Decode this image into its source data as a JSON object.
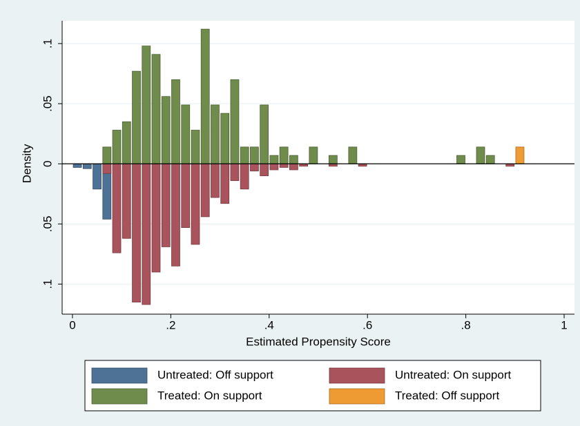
{
  "chart_data": {
    "type": "bar",
    "x_label": "Estimated Propensity Score",
    "y_label": "Density",
    "xlim": [
      -0.021,
      1.021
    ],
    "ylim": [
      -0.125,
      0.119
    ],
    "xticks": [
      0,
      {
        "value": 0.2,
        "label": ".2"
      },
      {
        "value": 0.4,
        "label": ".4"
      },
      {
        "value": 0.6,
        "label": ".6"
      },
      {
        "value": 0.8,
        "label": ".8"
      },
      1
    ],
    "yticks": [
      {
        "value": -0.1,
        "label": ".1"
      },
      {
        "value": -0.05,
        "label": ".05"
      },
      0,
      {
        "value": 0.05,
        "label": ".05"
      },
      {
        "value": 0.1,
        "label": ".1"
      }
    ],
    "grid": true,
    "series": [
      {
        "name": "Untreated: Off support",
        "color": "#4e7296",
        "x": [
          0.01,
          0.03,
          0.05,
          0.07
        ],
        "values": [
          -0.003,
          -0.004,
          -0.021,
          -0.046
        ]
      },
      {
        "name": "Untreated: On support",
        "color": "#a9535c",
        "x": [
          0.07,
          0.09,
          0.11,
          0.13,
          0.15,
          0.17,
          0.19,
          0.21,
          0.23,
          0.25,
          0.27,
          0.29,
          0.31,
          0.33,
          0.35,
          0.37,
          0.39,
          0.41,
          0.43,
          0.45,
          0.47,
          0.53,
          0.59,
          0.89
        ],
        "values": [
          -0.008,
          -0.074,
          -0.062,
          -0.115,
          -0.117,
          -0.09,
          -0.069,
          -0.085,
          -0.053,
          -0.067,
          -0.044,
          -0.028,
          -0.033,
          -0.014,
          -0.021,
          -0.006,
          -0.01,
          -0.005,
          -0.003,
          -0.005,
          -0.002,
          -0.002,
          -0.002,
          -0.002
        ]
      },
      {
        "name": "Treated: On support",
        "color": "#6f8c4c",
        "x": [
          0.07,
          0.09,
          0.11,
          0.13,
          0.15,
          0.17,
          0.19,
          0.21,
          0.23,
          0.25,
          0.27,
          0.29,
          0.31,
          0.33,
          0.35,
          0.37,
          0.39,
          0.41,
          0.43,
          0.45,
          0.49,
          0.53,
          0.57,
          0.79,
          0.83,
          0.85
        ],
        "values": [
          0.014,
          0.028,
          0.035,
          0.077,
          0.098,
          0.091,
          0.056,
          0.07,
          0.049,
          0.028,
          0.112,
          0.049,
          0.042,
          0.07,
          0.014,
          0.014,
          0.049,
          0.007,
          0.014,
          0.007,
          0.014,
          0.007,
          0.014,
          0.007,
          0.014,
          0.007
        ]
      },
      {
        "name": "Treated: Off support",
        "color": "#ee9b34",
        "x": [
          0.91
        ],
        "values": [
          0.014
        ]
      }
    ]
  }
}
